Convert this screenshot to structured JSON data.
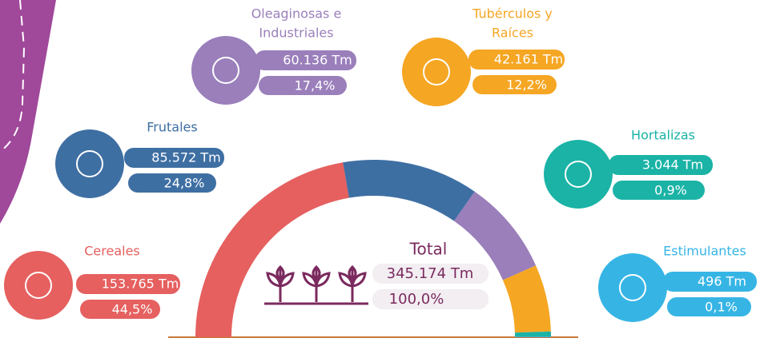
{
  "chart_data": {
    "type": "semi-donut",
    "categories": [
      "Cereales",
      "Frutales",
      [
        "Oleaginosas e",
        "Industriales"
      ],
      [
        "Tubérculos y",
        "Raíces"
      ],
      "Hortalizas",
      "Estimulantes"
    ],
    "values": [
      153765,
      85572,
      60136,
      42161,
      3044,
      496
    ],
    "value_labels": [
      "153.765 Tm",
      "85.572 Tm",
      "60.136 Tm",
      "42.161 Tm",
      "3.044 Tm",
      "496 Tm"
    ],
    "percentages": [
      44.5,
      24.8,
      17.4,
      12.2,
      0.9,
      0.1
    ],
    "percentage_labels": [
      "44,5%",
      "24,8%",
      "17,4%",
      "12,2%",
      "0,9%",
      "0,1%"
    ],
    "colors": [
      "#e5605f",
      "#3e6fa3",
      "#9a7fbb",
      "#f5a623",
      "#1ab3a6",
      "#36b5e5"
    ],
    "total_title": "Total",
    "total": 345174,
    "total_label": "345.174 Tm",
    "total_percentage": 100,
    "total_percentage_label": "100,0%"
  }
}
